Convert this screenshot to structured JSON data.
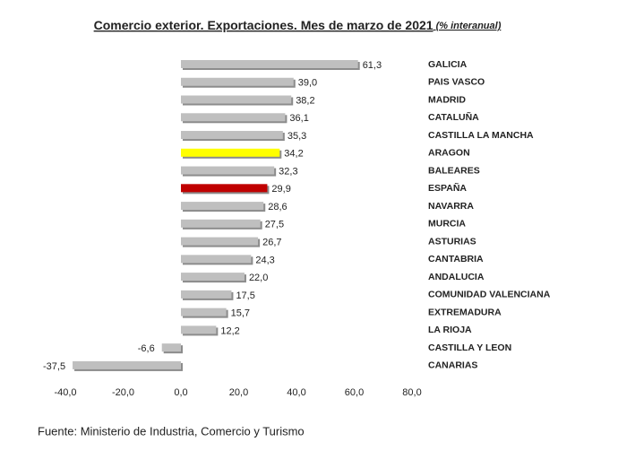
{
  "chart_data": {
    "type": "bar",
    "orientation": "horizontal",
    "title": "Comercio exterior. Exportaciones. Mes de marzo de 2021",
    "subtitle": "(% interanual)",
    "categories": [
      "GALICIA",
      "PAIS VASCO",
      "MADRID",
      "CATALUÑA",
      "CASTILLA LA MANCHA",
      "ARAGON",
      "BALEARES",
      "ESPAÑA",
      "NAVARRA",
      "MURCIA",
      "ASTURIAS",
      "CANTABRIA",
      "ANDALUCIA",
      "COMUNIDAD VALENCIANA",
      "EXTREMADURA",
      "LA RIOJA",
      "CASTILLA Y LEON",
      "CANARIAS"
    ],
    "values": [
      61.3,
      39.0,
      38.2,
      36.1,
      35.3,
      34.2,
      32.3,
      29.9,
      28.6,
      27.5,
      26.7,
      24.3,
      22.0,
      17.5,
      15.7,
      12.2,
      -6.6,
      -37.5
    ],
    "value_labels": [
      "61,3",
      "39,0",
      "38,2",
      "36,1",
      "35,3",
      "34,2",
      "32,3",
      "29,9",
      "28,6",
      "27,5",
      "26,7",
      "24,3",
      "22,0",
      "17,5",
      "15,7",
      "12,2",
      "-6,6",
      "-37,5"
    ],
    "colors": [
      "#bfbfbf",
      "#bfbfbf",
      "#bfbfbf",
      "#bfbfbf",
      "#bfbfbf",
      "#ffff00",
      "#bfbfbf",
      "#c00000",
      "#bfbfbf",
      "#bfbfbf",
      "#bfbfbf",
      "#bfbfbf",
      "#bfbfbf",
      "#bfbfbf",
      "#bfbfbf",
      "#bfbfbf",
      "#bfbfbf",
      "#bfbfbf"
    ],
    "xlim": [
      -40,
      80
    ],
    "xticks": [
      {
        "value": -40,
        "label": "-40,0"
      },
      {
        "value": -20,
        "label": "-20,0"
      },
      {
        "value": 0,
        "label": "0,0"
      },
      {
        "value": 20,
        "label": "20,0"
      },
      {
        "value": 40,
        "label": "40,0"
      },
      {
        "value": 60,
        "label": "60,0"
      },
      {
        "value": 80,
        "label": "80,0"
      }
    ],
    "grid": false,
    "source": "Fuente: Ministerio de Industria, Comercio y Turismo"
  }
}
